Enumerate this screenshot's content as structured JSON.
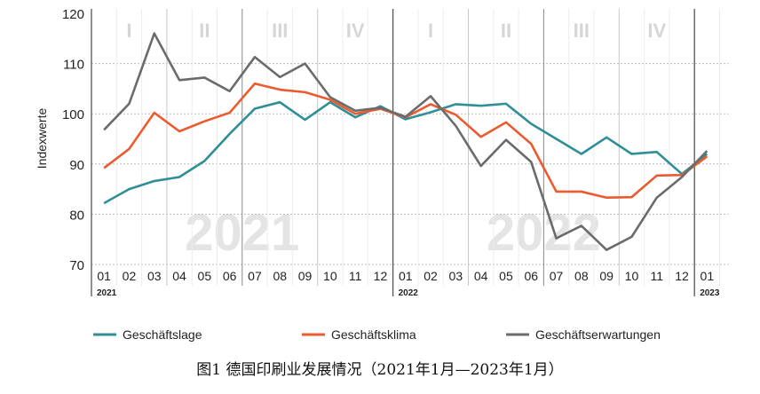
{
  "chart_data": {
    "type": "line",
    "ylabel": "Indexwerte",
    "ylim": [
      70,
      120
    ],
    "yticks": [
      70,
      80,
      90,
      100,
      110,
      120
    ],
    "x": [
      "01",
      "02",
      "03",
      "04",
      "05",
      "06",
      "07",
      "08",
      "09",
      "10",
      "11",
      "12",
      "01",
      "02",
      "03",
      "04",
      "05",
      "06",
      "07",
      "08",
      "09",
      "10",
      "11",
      "12",
      "01"
    ],
    "year_labels": [
      {
        "label": "2021",
        "index": 0
      },
      {
        "label": "2022",
        "index": 12
      },
      {
        "label": "2023",
        "index": 24
      }
    ],
    "watermarks": [
      "2021",
      "2022"
    ],
    "quarters": [
      "I",
      "II",
      "III",
      "IV"
    ],
    "series": [
      {
        "name": "Geschäftslage",
        "color": "#2e8f96",
        "values": [
          82.2,
          85,
          86.6,
          87.4,
          90.6,
          96,
          101,
          102.3,
          98.8,
          102.3,
          99.3,
          101.5,
          98.9,
          100.3,
          101.9,
          101.6,
          102,
          98,
          95,
          92,
          95.3,
          92,
          92.4,
          88,
          92
        ]
      },
      {
        "name": "Geschäftsklima",
        "color": "#ec5a2e",
        "values": [
          89.2,
          93,
          100.2,
          96.5,
          98.5,
          100.2,
          106,
          104.8,
          104.3,
          102.8,
          100,
          101,
          99.3,
          101.9,
          99.8,
          95.4,
          98.3,
          94,
          84.5,
          84.5,
          83.3,
          83.4,
          87.7,
          87.8,
          91.5
        ]
      },
      {
        "name": "Geschäftserwartungen",
        "color": "#6b6b6b",
        "values": [
          96.8,
          102,
          116,
          106.7,
          107.2,
          104.5,
          111.3,
          107.3,
          110,
          103.3,
          100.6,
          101.2,
          99.4,
          103.5,
          97.6,
          89.6,
          94.8,
          90.4,
          75.2,
          77.7,
          72.9,
          75.5,
          83.3,
          87.4,
          92.6
        ]
      }
    ]
  },
  "caption": "图1 德国印刷业发展情况（2021年1月—2023年1月）"
}
